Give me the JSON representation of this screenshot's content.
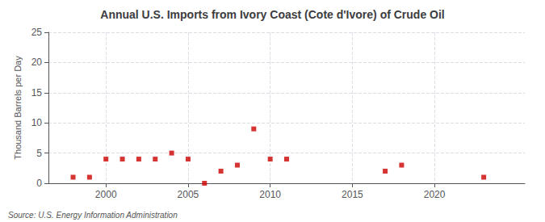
{
  "chart_data": {
    "type": "scatter",
    "title": "Annual U.S. Imports from Ivory Coast (Cote d'Ivore) of Crude Oil",
    "ylabel": "Thousand Barrels per Day",
    "annotations": [
      "Source: U.S. Energy Information Administration"
    ],
    "x": [
      1998,
      1999,
      2000,
      2001,
      2002,
      2003,
      2004,
      2005,
      2006,
      2007,
      2008,
      2009,
      2010,
      2011,
      2017,
      2018,
      2023
    ],
    "values": [
      1,
      1,
      4,
      4,
      4,
      4,
      5,
      4,
      0,
      2,
      3,
      9,
      4,
      4,
      2,
      3,
      1
    ],
    "color": "#cc0000",
    "marker": "square",
    "xlim": [
      1996.5,
      2025.5
    ],
    "xticks": [
      2000,
      2005,
      2010,
      2015,
      2020
    ],
    "ylim": [
      0,
      25
    ],
    "yticks": [
      0,
      5,
      10,
      15,
      20,
      25
    ],
    "grid": true
  }
}
